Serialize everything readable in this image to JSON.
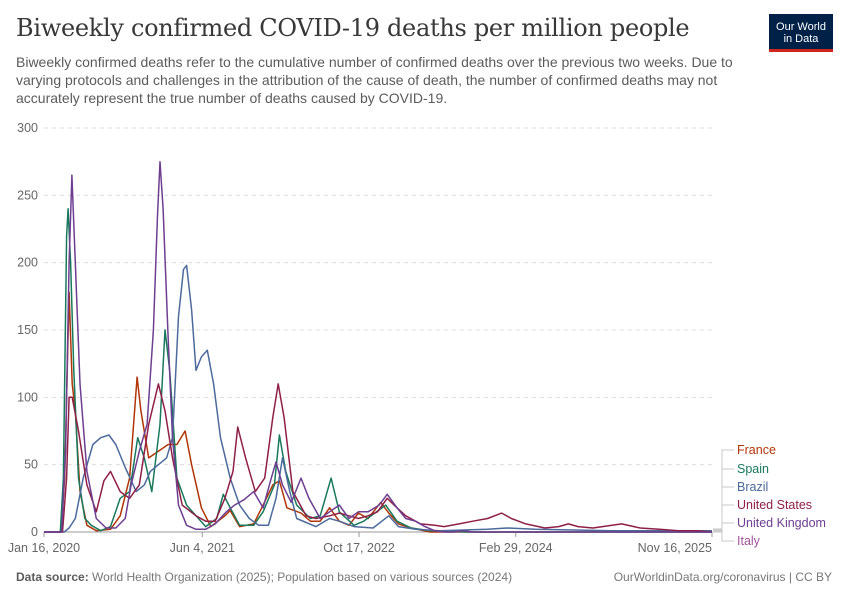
{
  "logo": {
    "line1": "Our World",
    "line2": "in Data"
  },
  "footer": {
    "source_label": "Data source:",
    "source_text": "World Health Organization (2025); Population based on various sources (2024)",
    "credit": "OurWorldinData.org/coronavirus | CC BY"
  },
  "chart_data": {
    "type": "line",
    "title": "Biweekly confirmed COVID-19 deaths per million people",
    "subtitle": "Biweekly confirmed deaths refer to the cumulative number of confirmed deaths over the previous two weeks. Due to varying protocols and challenges in the attribution of the cause of death, the number of confirmed deaths may not accurately represent the true number of deaths caused by COVID-19.",
    "xlabel": "",
    "ylabel": "",
    "x_ticks": [
      "Jan 16, 2020",
      "Jun 4, 2021",
      "Oct 17, 2022",
      "Feb 29, 2024",
      "Nov 16, 2025"
    ],
    "y_ticks": [
      0,
      50,
      100,
      150,
      200,
      250,
      300
    ],
    "ylim": [
      0,
      300
    ],
    "xlim": [
      "2020-01-16",
      "2025-11-16"
    ],
    "grid": "horizontal dashed",
    "legend": "right, end of lines",
    "series": [
      {
        "name": "France",
        "color": "#b13507",
        "points": [
          [
            "2020-01-16",
            0
          ],
          [
            "2020-03-10",
            0
          ],
          [
            "2020-03-22",
            40
          ],
          [
            "2020-04-05",
            178
          ],
          [
            "2020-04-15",
            110
          ],
          [
            "2020-04-25",
            90
          ],
          [
            "2020-05-10",
            30
          ],
          [
            "2020-06-01",
            5
          ],
          [
            "2020-07-01",
            1
          ],
          [
            "2020-08-15",
            2
          ],
          [
            "2020-09-15",
            12
          ],
          [
            "2020-10-15",
            40
          ],
          [
            "2020-11-08",
            115
          ],
          [
            "2020-11-20",
            90
          ],
          [
            "2020-12-15",
            55
          ],
          [
            "2021-01-15",
            60
          ],
          [
            "2021-02-15",
            65
          ],
          [
            "2021-03-15",
            65
          ],
          [
            "2021-04-10",
            75
          ],
          [
            "2021-05-01",
            50
          ],
          [
            "2021-06-01",
            18
          ],
          [
            "2021-07-01",
            4
          ],
          [
            "2021-08-15",
            12
          ],
          [
            "2021-09-01",
            16
          ],
          [
            "2021-10-01",
            4
          ],
          [
            "2021-11-15",
            6
          ],
          [
            "2021-12-15",
            20
          ],
          [
            "2022-01-15",
            35
          ],
          [
            "2022-02-05",
            38
          ],
          [
            "2022-03-01",
            18
          ],
          [
            "2022-04-15",
            14
          ],
          [
            "2022-05-15",
            8
          ],
          [
            "2022-06-15",
            8
          ],
          [
            "2022-07-15",
            18
          ],
          [
            "2022-08-15",
            8
          ],
          [
            "2022-09-15",
            5
          ],
          [
            "2022-10-15",
            14
          ],
          [
            "2022-11-15",
            10
          ],
          [
            "2022-12-25",
            22
          ],
          [
            "2023-01-20",
            14
          ],
          [
            "2023-02-20",
            6
          ],
          [
            "2023-04-01",
            3
          ],
          [
            "2023-06-01",
            0
          ],
          [
            "2023-08-01",
            0
          ],
          [
            "2024-01-01",
            0
          ],
          [
            "2025-11-16",
            0
          ]
        ]
      },
      {
        "name": "Spain",
        "color": "#18795d",
        "points": [
          [
            "2020-01-16",
            0
          ],
          [
            "2020-03-08",
            0
          ],
          [
            "2020-03-18",
            40
          ],
          [
            "2020-03-28",
            220
          ],
          [
            "2020-04-02",
            240
          ],
          [
            "2020-04-10",
            200
          ],
          [
            "2020-04-20",
            120
          ],
          [
            "2020-05-05",
            40
          ],
          [
            "2020-05-25",
            10
          ],
          [
            "2020-06-15",
            5
          ],
          [
            "2020-07-15",
            1
          ],
          [
            "2020-08-15",
            4
          ],
          [
            "2020-09-15",
            25
          ],
          [
            "2020-10-15",
            30
          ],
          [
            "2020-11-10",
            70
          ],
          [
            "2020-12-01",
            55
          ],
          [
            "2020-12-25",
            30
          ],
          [
            "2021-01-20",
            80
          ],
          [
            "2021-02-05",
            150
          ],
          [
            "2021-02-20",
            120
          ],
          [
            "2021-03-15",
            40
          ],
          [
            "2021-04-15",
            20
          ],
          [
            "2021-05-15",
            12
          ],
          [
            "2021-06-15",
            4
          ],
          [
            "2021-07-20",
            10
          ],
          [
            "2021-08-10",
            28
          ],
          [
            "2021-09-01",
            18
          ],
          [
            "2021-10-01",
            5
          ],
          [
            "2021-11-15",
            5
          ],
          [
            "2021-12-15",
            15
          ],
          [
            "2022-01-20",
            35
          ],
          [
            "2022-02-05",
            72
          ],
          [
            "2022-02-25",
            45
          ],
          [
            "2022-04-01",
            20
          ],
          [
            "2022-05-15",
            10
          ],
          [
            "2022-06-15",
            12
          ],
          [
            "2022-07-20",
            40
          ],
          [
            "2022-08-15",
            15
          ],
          [
            "2022-10-01",
            5
          ],
          [
            "2022-11-01",
            8
          ],
          [
            "2023-01-10",
            20
          ],
          [
            "2023-02-15",
            8
          ],
          [
            "2023-04-01",
            3
          ],
          [
            "2023-06-01",
            1
          ],
          [
            "2023-10-01",
            0
          ],
          [
            "2024-01-01",
            0
          ],
          [
            "2025-11-16",
            0
          ]
        ]
      },
      {
        "name": "Brazil",
        "color": "#4c6a9c",
        "points": [
          [
            "2020-01-16",
            0
          ],
          [
            "2020-03-20",
            0
          ],
          [
            "2020-04-05",
            3
          ],
          [
            "2020-04-25",
            10
          ],
          [
            "2020-05-20",
            40
          ],
          [
            "2020-06-20",
            65
          ],
          [
            "2020-07-15",
            70
          ],
          [
            "2020-08-10",
            72
          ],
          [
            "2020-09-01",
            65
          ],
          [
            "2020-10-01",
            48
          ],
          [
            "2020-11-05",
            30
          ],
          [
            "2020-12-01",
            35
          ],
          [
            "2020-12-20",
            45
          ],
          [
            "2021-01-15",
            50
          ],
          [
            "2021-02-10",
            55
          ],
          [
            "2021-03-01",
            70
          ],
          [
            "2021-03-20",
            160
          ],
          [
            "2021-04-05",
            195
          ],
          [
            "2021-04-15",
            198
          ],
          [
            "2021-05-01",
            165
          ],
          [
            "2021-05-15",
            120
          ],
          [
            "2021-06-01",
            130
          ],
          [
            "2021-06-20",
            135
          ],
          [
            "2021-07-10",
            110
          ],
          [
            "2021-08-01",
            70
          ],
          [
            "2021-09-01",
            40
          ],
          [
            "2021-10-01",
            20
          ],
          [
            "2021-11-01",
            10
          ],
          [
            "2021-12-01",
            5
          ],
          [
            "2022-01-01",
            5
          ],
          [
            "2022-01-25",
            25
          ],
          [
            "2022-02-15",
            55
          ],
          [
            "2022-03-10",
            30
          ],
          [
            "2022-04-01",
            10
          ],
          [
            "2022-06-01",
            4
          ],
          [
            "2022-07-15",
            10
          ],
          [
            "2022-08-15",
            8
          ],
          [
            "2022-10-01",
            4
          ],
          [
            "2022-12-01",
            3
          ],
          [
            "2023-01-20",
            12
          ],
          [
            "2023-02-20",
            4
          ],
          [
            "2023-04-15",
            2
          ],
          [
            "2023-07-01",
            1
          ],
          [
            "2023-12-01",
            2
          ],
          [
            "2024-02-01",
            3
          ],
          [
            "2024-05-01",
            2
          ],
          [
            "2025-01-01",
            1
          ],
          [
            "2025-11-16",
            1
          ]
        ]
      },
      {
        "name": "United States",
        "color": "#8f1f47",
        "points": [
          [
            "2020-01-16",
            0
          ],
          [
            "2020-03-15",
            0
          ],
          [
            "2020-03-28",
            40
          ],
          [
            "2020-04-05",
            100
          ],
          [
            "2020-04-15",
            100
          ],
          [
            "2020-05-05",
            75
          ],
          [
            "2020-06-01",
            35
          ],
          [
            "2020-07-01",
            15
          ],
          [
            "2020-07-25",
            38
          ],
          [
            "2020-08-15",
            45
          ],
          [
            "2020-09-15",
            30
          ],
          [
            "2020-10-15",
            25
          ],
          [
            "2020-11-15",
            35
          ],
          [
            "2020-12-15",
            80
          ],
          [
            "2021-01-15",
            110
          ],
          [
            "2021-02-05",
            90
          ],
          [
            "2021-03-01",
            55
          ],
          [
            "2021-04-01",
            20
          ],
          [
            "2021-05-15",
            12
          ],
          [
            "2021-06-15",
            8
          ],
          [
            "2021-07-15",
            8
          ],
          [
            "2021-08-15",
            25
          ],
          [
            "2021-09-10",
            45
          ],
          [
            "2021-09-25",
            78
          ],
          [
            "2021-10-20",
            55
          ],
          [
            "2021-11-20",
            30
          ],
          [
            "2021-12-20",
            40
          ],
          [
            "2022-01-15",
            85
          ],
          [
            "2022-02-01",
            110
          ],
          [
            "2022-02-20",
            85
          ],
          [
            "2022-03-20",
            30
          ],
          [
            "2022-05-01",
            12
          ],
          [
            "2022-06-01",
            10
          ],
          [
            "2022-07-15",
            12
          ],
          [
            "2022-08-15",
            14
          ],
          [
            "2022-09-15",
            12
          ],
          [
            "2022-10-15",
            10
          ],
          [
            "2022-11-15",
            12
          ],
          [
            "2022-12-15",
            15
          ],
          [
            "2023-01-15",
            25
          ],
          [
            "2023-02-15",
            18
          ],
          [
            "2023-03-15",
            12
          ],
          [
            "2023-05-01",
            6
          ],
          [
            "2023-06-15",
            5
          ],
          [
            "2023-07-15",
            4
          ],
          [
            "2023-09-01",
            6
          ],
          [
            "2023-10-15",
            8
          ],
          [
            "2023-12-01",
            10
          ],
          [
            "2024-01-15",
            14
          ],
          [
            "2024-02-15",
            10
          ],
          [
            "2024-04-01",
            6
          ],
          [
            "2024-06-01",
            3
          ],
          [
            "2024-07-15",
            4
          ],
          [
            "2024-08-15",
            6
          ],
          [
            "2024-09-15",
            4
          ],
          [
            "2024-11-01",
            3
          ],
          [
            "2025-01-01",
            5
          ],
          [
            "2025-02-01",
            6
          ],
          [
            "2025-04-01",
            3
          ],
          [
            "2025-06-01",
            2
          ],
          [
            "2025-08-01",
            1
          ],
          [
            "2025-10-01",
            1
          ],
          [
            "2025-11-16",
            0
          ]
        ]
      },
      {
        "name": "United Kingdom",
        "color": "#6d3e91",
        "points": [
          [
            "2020-01-16",
            0
          ],
          [
            "2020-03-12",
            0
          ],
          [
            "2020-03-25",
            60
          ],
          [
            "2020-04-05",
            200
          ],
          [
            "2020-04-14",
            265
          ],
          [
            "2020-04-25",
            200
          ],
          [
            "2020-05-10",
            110
          ],
          [
            "2020-06-01",
            45
          ],
          [
            "2020-07-01",
            10
          ],
          [
            "2020-08-01",
            3
          ],
          [
            "2020-09-01",
            3
          ],
          [
            "2020-10-01",
            10
          ],
          [
            "2020-10-20",
            35
          ],
          [
            "2020-11-15",
            60
          ],
          [
            "2020-12-10",
            80
          ],
          [
            "2020-12-30",
            150
          ],
          [
            "2021-01-12",
            235
          ],
          [
            "2021-01-20",
            275
          ],
          [
            "2021-01-30",
            240
          ],
          [
            "2021-02-15",
            145
          ],
          [
            "2021-03-01",
            70
          ],
          [
            "2021-03-20",
            20
          ],
          [
            "2021-04-15",
            5
          ],
          [
            "2021-05-15",
            2
          ],
          [
            "2021-06-15",
            2
          ],
          [
            "2021-07-15",
            6
          ],
          [
            "2021-08-20",
            15
          ],
          [
            "2021-09-15",
            20
          ],
          [
            "2021-10-15",
            24
          ],
          [
            "2021-11-15",
            30
          ],
          [
            "2021-12-15",
            18
          ],
          [
            "2022-01-10",
            40
          ],
          [
            "2022-01-25",
            52
          ],
          [
            "2022-02-15",
            35
          ],
          [
            "2022-03-15",
            22
          ],
          [
            "2022-04-15",
            40
          ],
          [
            "2022-05-10",
            25
          ],
          [
            "2022-06-15",
            10
          ],
          [
            "2022-07-15",
            15
          ],
          [
            "2022-08-15",
            20
          ],
          [
            "2022-09-15",
            10
          ],
          [
            "2022-10-15",
            15
          ],
          [
            "2022-11-15",
            15
          ],
          [
            "2022-12-20",
            20
          ],
          [
            "2023-01-15",
            28
          ],
          [
            "2023-02-15",
            18
          ],
          [
            "2023-03-15",
            10
          ],
          [
            "2023-04-15",
            8
          ],
          [
            "2023-05-15",
            4
          ],
          [
            "2023-06-15",
            1
          ],
          [
            "2023-07-15",
            0
          ],
          [
            "2023-08-15",
            0
          ],
          [
            "2023-09-15",
            1
          ],
          [
            "2023-10-15",
            0
          ],
          [
            "2024-01-01",
            0
          ],
          [
            "2025-11-16",
            0
          ]
        ]
      },
      {
        "name": "Italy",
        "color": "#a2559c",
        "points": []
      }
    ]
  }
}
